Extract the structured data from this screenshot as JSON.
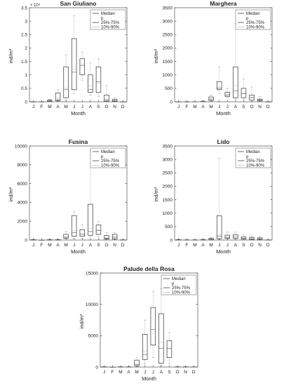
{
  "legend_labels": {
    "median": "Median",
    "mean": "μ",
    "iqr": "25%-75%",
    "range": "10%-90%"
  },
  "chart_data": [
    {
      "type": "box",
      "title": "San Giuliano",
      "xlabel": "Month",
      "ylabel": "ind/m³",
      "categories": [
        "J",
        "F",
        "M",
        "A",
        "M",
        "J",
        "J",
        "A",
        "S",
        "O",
        "N",
        "D"
      ],
      "ylim": [
        0,
        35000
      ],
      "yticks": [
        0,
        5000,
        10000,
        15000,
        20000,
        25000,
        30000,
        35000
      ],
      "ytick_labels": [
        "0",
        "0.5",
        "1",
        "1.5",
        "2",
        "2.5",
        "3",
        "3.5"
      ],
      "multiplier": "× 10⁴",
      "legend_position": "top-right",
      "boxes": [
        {
          "q1": 0,
          "median": 0,
          "q3": 0,
          "p10": 0,
          "p90": 0,
          "mean": 0
        },
        {
          "q1": 0,
          "median": 0,
          "q3": 0,
          "p10": 0,
          "p90": 0,
          "mean": 0
        },
        {
          "q1": 200,
          "median": 300,
          "q3": 600,
          "p10": 100,
          "p90": 900,
          "mean": 400
        },
        {
          "q1": 400,
          "median": 800,
          "q3": 3300,
          "p10": 200,
          "p90": 4500,
          "mean": 1500
        },
        {
          "q1": 1500,
          "median": 4500,
          "q3": 13000,
          "p10": 500,
          "p90": 17500,
          "mean": 5000
        },
        {
          "q1": 4500,
          "median": 11000,
          "q3": 23500,
          "p10": 3000,
          "p90": 32000,
          "mean": 12000
        },
        {
          "q1": 10000,
          "median": 13500,
          "q3": 16000,
          "p10": 8000,
          "p90": 18500,
          "mean": 14000
        },
        {
          "q1": 3500,
          "median": 4500,
          "q3": 10000,
          "p10": 2500,
          "p90": 14500,
          "mean": 6000
        },
        {
          "q1": 3500,
          "median": 7500,
          "q3": 13000,
          "p10": 2000,
          "p90": 16000,
          "mean": 7000
        },
        {
          "q1": 200,
          "median": 600,
          "q3": 2500,
          "p10": 100,
          "p90": 6000,
          "mean": 1000
        },
        {
          "q1": 200,
          "median": 400,
          "q3": 900,
          "p10": 50,
          "p90": 1500,
          "mean": 500
        },
        {
          "q1": 0,
          "median": 0,
          "q3": 0,
          "p10": 0,
          "p90": 0,
          "mean": 0
        }
      ]
    },
    {
      "type": "box",
      "title": "Marghera",
      "xlabel": "Month",
      "ylabel": "ind/m³",
      "categories": [
        "J",
        "F",
        "M",
        "A",
        "M",
        "J",
        "J",
        "A",
        "S",
        "O",
        "N",
        "D"
      ],
      "ylim": [
        0,
        3500
      ],
      "yticks": [
        0,
        500,
        1000,
        1500,
        2000,
        2500,
        3000,
        3500
      ],
      "ytick_labels": [
        "0",
        "500",
        "1000",
        "1500",
        "2000",
        "2500",
        "3000",
        "3500"
      ],
      "legend_position": "top-right",
      "boxes": [
        {
          "q1": 0,
          "median": 0,
          "q3": 0,
          "p10": 0,
          "p90": 0,
          "mean": 0
        },
        {
          "q1": 0,
          "median": 0,
          "q3": 0,
          "p10": 0,
          "p90": 0,
          "mean": 0
        },
        {
          "q1": 0,
          "median": 0,
          "q3": 5,
          "p10": 0,
          "p90": 10,
          "mean": 3
        },
        {
          "q1": 5,
          "median": 10,
          "q3": 20,
          "p10": 0,
          "p90": 40,
          "mean": 12
        },
        {
          "q1": 50,
          "median": 100,
          "q3": 180,
          "p10": 20,
          "p90": 250,
          "mean": 110
        },
        {
          "q1": 450,
          "median": 500,
          "q3": 750,
          "p10": 300,
          "p90": 1300,
          "mean": 550
        },
        {
          "q1": 200,
          "median": 250,
          "q3": 350,
          "p10": 150,
          "p90": 500,
          "mean": 270
        },
        {
          "q1": 150,
          "median": 400,
          "q3": 1300,
          "p10": 100,
          "p90": 2900,
          "mean": 600
        },
        {
          "q1": 150,
          "median": 300,
          "q3": 500,
          "p10": 80,
          "p90": 850,
          "mean": 320
        },
        {
          "q1": 60,
          "median": 150,
          "q3": 250,
          "p10": 20,
          "p90": 550,
          "mean": 170
        },
        {
          "q1": 30,
          "median": 60,
          "q3": 100,
          "p10": 10,
          "p90": 200,
          "mean": 70
        },
        {
          "q1": 0,
          "median": 0,
          "q3": 0,
          "p10": 0,
          "p90": 0,
          "mean": 0
        }
      ]
    },
    {
      "type": "box",
      "title": "Fusina",
      "xlabel": "Month",
      "ylabel": "ind/m³",
      "categories": [
        "J",
        "F",
        "M",
        "A",
        "M",
        "J",
        "J",
        "A",
        "S",
        "O",
        "N",
        "D"
      ],
      "ylim": [
        0,
        10000
      ],
      "yticks": [
        0,
        2000,
        4000,
        6000,
        8000,
        10000
      ],
      "ytick_labels": [
        "0",
        "2000",
        "4000",
        "6000",
        "8000",
        "10000"
      ],
      "legend_position": "top-right",
      "boxes": [
        {
          "q1": 0,
          "median": 0,
          "q3": 50,
          "p10": 0,
          "p90": 100,
          "mean": 30
        },
        {
          "q1": 0,
          "median": 0,
          "q3": 0,
          "p10": 0,
          "p90": 0,
          "mean": 0
        },
        {
          "q1": 0,
          "median": 0,
          "q3": 50,
          "p10": 0,
          "p90": 100,
          "mean": 30
        },
        {
          "q1": 0,
          "median": 0,
          "q3": 50,
          "p10": 0,
          "p90": 100,
          "mean": 20
        },
        {
          "q1": 200,
          "median": 300,
          "q3": 600,
          "p10": 100,
          "p90": 900,
          "mean": 350
        },
        {
          "q1": 400,
          "median": 800,
          "q3": 2600,
          "p10": 200,
          "p90": 3000,
          "mean": 1000
        },
        {
          "q1": 400,
          "median": 600,
          "q3": 1100,
          "p10": 200,
          "p90": 1600,
          "mean": 700
        },
        {
          "q1": 500,
          "median": 900,
          "q3": 3800,
          "p10": 300,
          "p90": 9500,
          "mean": 1200
        },
        {
          "q1": 600,
          "median": 1000,
          "q3": 1600,
          "p10": 300,
          "p90": 2000,
          "mean": 1100
        },
        {
          "q1": 100,
          "median": 200,
          "q3": 500,
          "p10": 50,
          "p90": 800,
          "mean": 250
        },
        {
          "q1": 100,
          "median": 300,
          "q3": 600,
          "p10": 50,
          "p90": 800,
          "mean": 350
        },
        {
          "q1": 0,
          "median": 0,
          "q3": 30,
          "p10": 0,
          "p90": 60,
          "mean": 15
        }
      ]
    },
    {
      "type": "box",
      "title": "Lido",
      "xlabel": "Month",
      "ylabel": "ind/m³",
      "categories": [
        "J",
        "F",
        "M",
        "A",
        "M",
        "J",
        "J",
        "A",
        "S",
        "O",
        "N",
        "D"
      ],
      "ylim": [
        0,
        3500
      ],
      "yticks": [
        0,
        500,
        1000,
        1500,
        2000,
        2500,
        3000,
        3500
      ],
      "ytick_labels": [
        "0",
        "500",
        "1000",
        "1500",
        "2000",
        "2500",
        "3000",
        "3500"
      ],
      "legend_position": "top-right",
      "boxes": [
        {
          "q1": 0,
          "median": 5,
          "q3": 20,
          "p10": 0,
          "p90": 40,
          "mean": 10
        },
        {
          "q1": 0,
          "median": 0,
          "q3": 10,
          "p10": 0,
          "p90": 20,
          "mean": 5
        },
        {
          "q1": 0,
          "median": 0,
          "q3": 10,
          "p10": 0,
          "p90": 20,
          "mean": 5
        },
        {
          "q1": 0,
          "median": 5,
          "q3": 20,
          "p10": 0,
          "p90": 40,
          "mean": 10
        },
        {
          "q1": 10,
          "median": 30,
          "q3": 60,
          "p10": 5,
          "p90": 100,
          "mean": 35
        },
        {
          "q1": 50,
          "median": 150,
          "q3": 900,
          "p10": 20,
          "p90": 3050,
          "mean": 200
        },
        {
          "q1": 60,
          "median": 100,
          "q3": 180,
          "p10": 30,
          "p90": 300,
          "mean": 110
        },
        {
          "q1": 60,
          "median": 120,
          "q3": 200,
          "p10": 30,
          "p90": 300,
          "mean": 130
        },
        {
          "q1": 30,
          "median": 60,
          "q3": 120,
          "p10": 10,
          "p90": 200,
          "mean": 70
        },
        {
          "q1": 20,
          "median": 50,
          "q3": 100,
          "p10": 10,
          "p90": 150,
          "mean": 55
        },
        {
          "q1": 20,
          "median": 40,
          "q3": 80,
          "p10": 10,
          "p90": 120,
          "mean": 45
        },
        {
          "q1": 0,
          "median": 5,
          "q3": 10,
          "p10": 0,
          "p90": 20,
          "mean": 5
        }
      ]
    },
    {
      "type": "box",
      "title": "Palude della Rosa",
      "xlabel": "Month",
      "ylabel": "ind/m³",
      "categories": [
        "J",
        "F",
        "M",
        "A",
        "M",
        "J",
        "J",
        "A",
        "S",
        "O",
        "N",
        "D"
      ],
      "ylim": [
        0,
        15000
      ],
      "yticks": [
        0,
        5000,
        10000,
        15000
      ],
      "ytick_labels": [
        "0",
        "5000",
        "10000",
        "15000"
      ],
      "legend_position": "top-right",
      "boxes": [
        {
          "q1": 0,
          "median": 0,
          "q3": 50,
          "p10": 0,
          "p90": 100,
          "mean": 30
        },
        {
          "q1": 0,
          "median": 0,
          "q3": 0,
          "p10": 0,
          "p90": 0,
          "mean": 0
        },
        {
          "q1": 0,
          "median": 0,
          "q3": 50,
          "p10": 0,
          "p90": 100,
          "mean": 20
        },
        {
          "q1": 0,
          "median": 0,
          "q3": 50,
          "p10": 0,
          "p90": 100,
          "mean": 20
        },
        {
          "q1": 200,
          "median": 400,
          "q3": 1100,
          "p10": 100,
          "p90": 1500,
          "mean": 500
        },
        {
          "q1": 1200,
          "median": 2000,
          "q3": 5200,
          "p10": 500,
          "p90": 7500,
          "mean": 2500
        },
        {
          "q1": 3500,
          "median": 6000,
          "q3": 9500,
          "p10": 1500,
          "p90": 12000,
          "mean": 6000
        },
        {
          "q1": 600,
          "median": 3000,
          "q3": 8500,
          "p10": 200,
          "p90": 12500,
          "mean": 4000
        },
        {
          "q1": 1500,
          "median": 3000,
          "q3": 4200,
          "p10": 500,
          "p90": 5500,
          "mean": 2800
        },
        {
          "q1": 0,
          "median": 0,
          "q3": 50,
          "p10": 0,
          "p90": 100,
          "mean": 20
        },
        {
          "q1": 0,
          "median": 0,
          "q3": 50,
          "p10": 0,
          "p90": 100,
          "mean": 20
        },
        {
          "q1": 0,
          "median": 0,
          "q3": 30,
          "p10": 0,
          "p90": 60,
          "mean": 10
        }
      ]
    }
  ]
}
